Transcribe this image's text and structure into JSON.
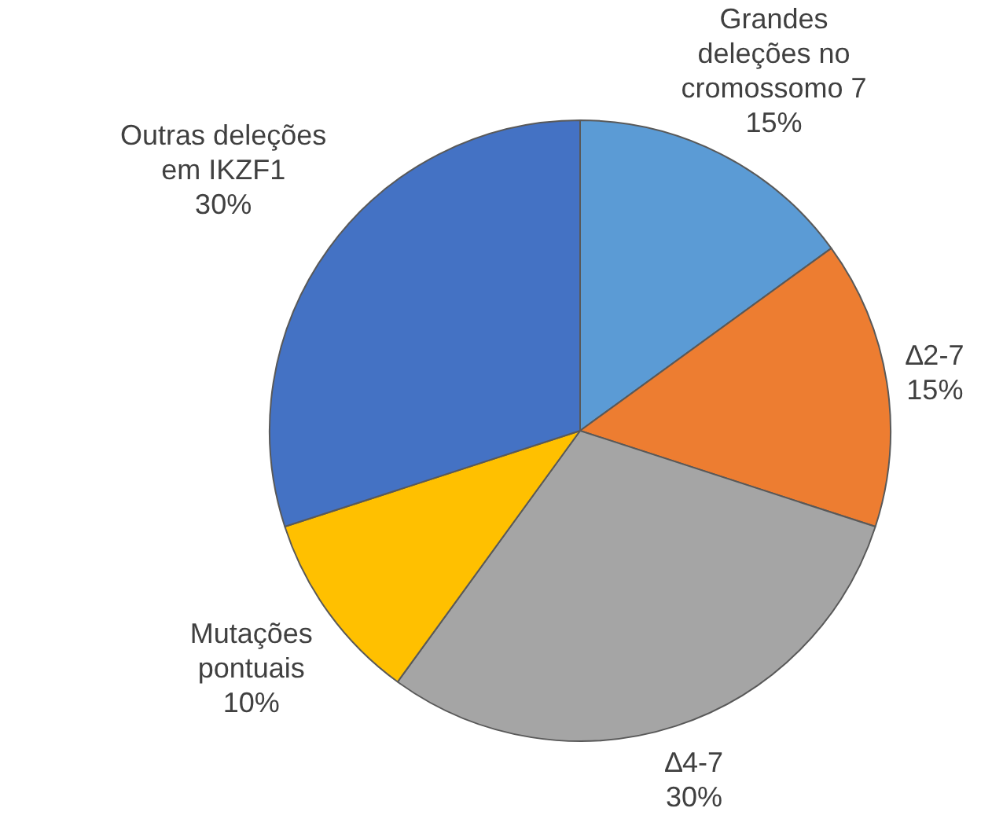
{
  "chart_data": {
    "type": "pie",
    "categories": [
      "Grandes deleções no cromossomo 7",
      "∆2-7",
      "∆4-7",
      "Mutações pontuais",
      "Outras deleções em IKZF1"
    ],
    "values": [
      15,
      15,
      30,
      10,
      30
    ],
    "value_labels": [
      "15%",
      "15%",
      "30%",
      "10%",
      "30%"
    ],
    "colors": [
      "#5b9bd5",
      "#ed7d31",
      "#a5a5a5",
      "#ffc000",
      "#4472c4"
    ],
    "legend": false
  }
}
